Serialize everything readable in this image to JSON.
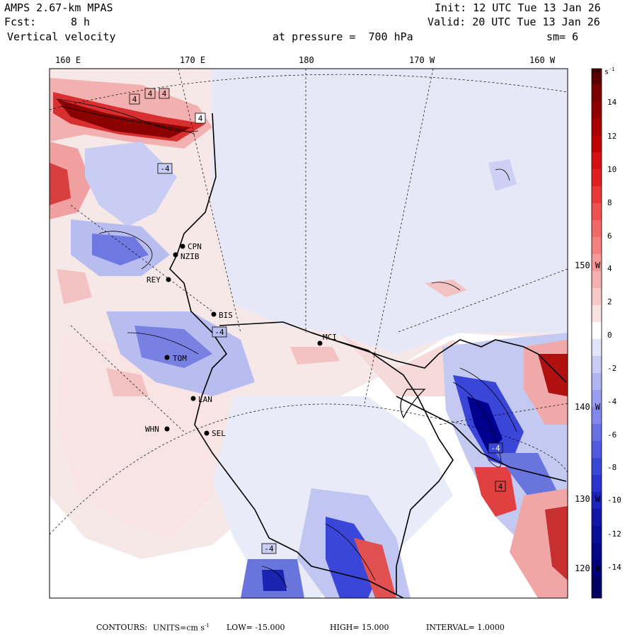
{
  "header": {
    "model": "AMPS 2.67-km MPAS",
    "forecast_label": "Fcst:",
    "forecast_value": "8 h",
    "field": "Vertical velocity",
    "init": "Init: 12 UTC Tue 13 Jan 26",
    "valid": "Valid: 20 UTC Tue 13 Jan 26",
    "pressure": "at pressure =  700 hPa",
    "smoothing": "sm= 6"
  },
  "top_ticks": [
    "160 E",
    "170 E",
    "180",
    "170 W",
    "160 W"
  ],
  "right_ticks": [
    "150 W",
    "140 W",
    "130 W",
    "120 W"
  ],
  "stations": [
    {
      "id": "CPN",
      "label": "CPN"
    },
    {
      "id": "NZIB",
      "label": "NZIB"
    },
    {
      "id": "REY",
      "label": "REY"
    },
    {
      "id": "BIS",
      "label": "BIS"
    },
    {
      "id": "TOM",
      "label": "TOM"
    },
    {
      "id": "LAN",
      "label": "LAN"
    },
    {
      "id": "WHN",
      "label": "WHN"
    },
    {
      "id": "SEL",
      "label": "SEL"
    },
    {
      "id": "MCI",
      "label": "MCI"
    }
  ],
  "contour_boxes": [
    "4",
    "4",
    "-4",
    "-4",
    "4",
    "4",
    "-4",
    "-4",
    "4"
  ],
  "colorbar": {
    "unit_label": "cm s",
    "unit_exp": "-1",
    "labels": [
      "14",
      "12",
      "10",
      "8",
      "6",
      "4",
      "2",
      "0",
      "-2",
      "-4",
      "-6",
      "-8",
      "-10",
      "-12",
      "-14"
    ],
    "colors": {
      "pos_max": "#7a0000",
      "pos_mid": "#e02020",
      "pos_low": "#f6b8b8",
      "zero": "#ffffff",
      "neg_low": "#c8cdf4",
      "neg_mid": "#3a46d8",
      "neg_max": "#00007a"
    }
  },
  "footer": {
    "contours_label": "CONTOURS:",
    "units": "UNITS=cm s",
    "units_exp": "-1",
    "low": "LOW= -15.000",
    "high": "HIGH= 15.000",
    "interval": "INTERVAL= 1.0000"
  }
}
